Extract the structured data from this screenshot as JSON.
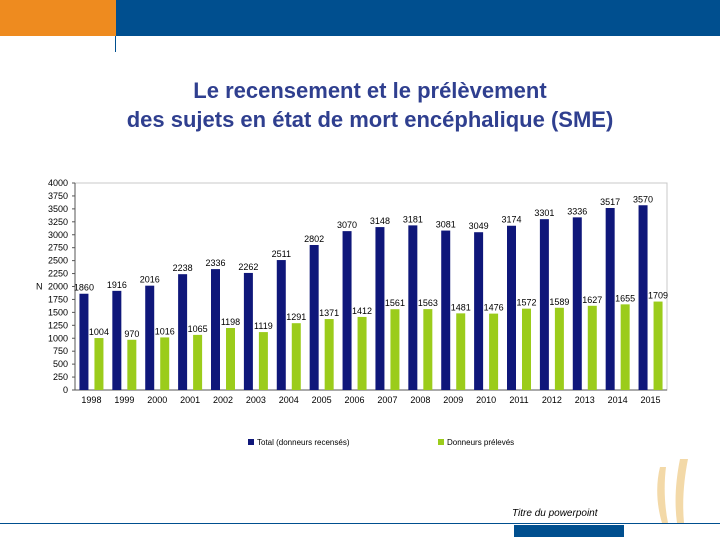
{
  "colors": {
    "orange": "#ee8b1f",
    "blue": "#004f8f",
    "title": "#2f3f8f",
    "total": "#0f177a",
    "preleves": "#9bcc1b"
  },
  "title": {
    "line1": "Le recensement et le prélèvement",
    "line2": "des sujets en état de mort encéphalique (SME)"
  },
  "footer": {
    "text": "Titre du powerpoint"
  },
  "chart_data": {
    "type": "bar",
    "ylabel": "N",
    "ylim": [
      0,
      4000
    ],
    "yticks": [
      0,
      250,
      500,
      750,
      1000,
      1250,
      1500,
      1750,
      2000,
      2250,
      2500,
      2750,
      3000,
      3250,
      3500,
      3750,
      4000
    ],
    "categories": [
      "1998",
      "1999",
      "2000",
      "2001",
      "2002",
      "2003",
      "2004",
      "2005",
      "2006",
      "2007",
      "2008",
      "2009",
      "2010",
      "2011",
      "2012",
      "2013",
      "2014",
      "2015"
    ],
    "series": [
      {
        "name": "Total (donneurs recensés)",
        "values": [
          1860,
          1916,
          2016,
          2238,
          2336,
          2262,
          2511,
          2802,
          3070,
          3148,
          3181,
          3081,
          3049,
          3174,
          3301,
          3336,
          3517,
          3570
        ]
      },
      {
        "name": "Donneurs prélevés",
        "values": [
          1004,
          970,
          1016,
          1065,
          1198,
          1119,
          1291,
          1371,
          1412,
          1561,
          1563,
          1481,
          1476,
          1572,
          1589,
          1627,
          1655,
          1709
        ]
      }
    ],
    "legend_position": "bottom"
  }
}
